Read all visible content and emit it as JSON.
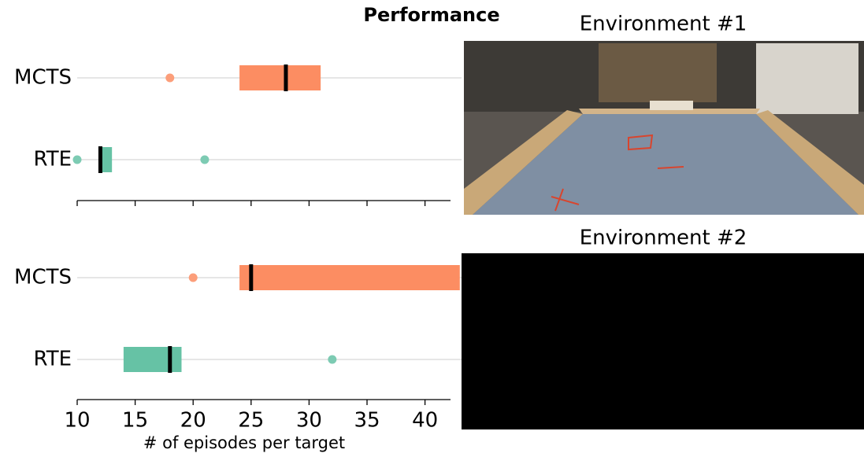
{
  "title": "Performance",
  "images": [
    {
      "title": "Environment #1"
    },
    {
      "title": "Environment #2"
    }
  ],
  "chart_data": [
    {
      "type": "box",
      "xlim": [
        10,
        42.2
      ],
      "xticks": [
        10,
        15,
        20,
        25,
        30,
        35,
        40
      ],
      "show_tick_labels": false,
      "boxes": [
        {
          "label": "MCTS",
          "color": "#fc8d62",
          "q1": 24,
          "median": 28,
          "q3": 31,
          "outliers": [
            18
          ]
        },
        {
          "label": "RTE",
          "color": "#66c2a5",
          "q1": 12,
          "median": 12,
          "q3": 13,
          "outliers": [
            10,
            21
          ]
        }
      ]
    },
    {
      "type": "box",
      "xlim": [
        10,
        42.2
      ],
      "xticks": [
        10,
        15,
        20,
        25,
        30,
        35,
        40
      ],
      "show_tick_labels": true,
      "xlabel": "# of episodes per target",
      "boxes": [
        {
          "label": "MCTS",
          "color": "#fc8d62",
          "q1": 24,
          "median": 25,
          "q3": 43,
          "outliers": [
            20
          ]
        },
        {
          "label": "RTE",
          "color": "#66c2a5",
          "q1": 14,
          "median": 18,
          "q3": 19,
          "outliers": [
            32
          ]
        }
      ]
    }
  ]
}
